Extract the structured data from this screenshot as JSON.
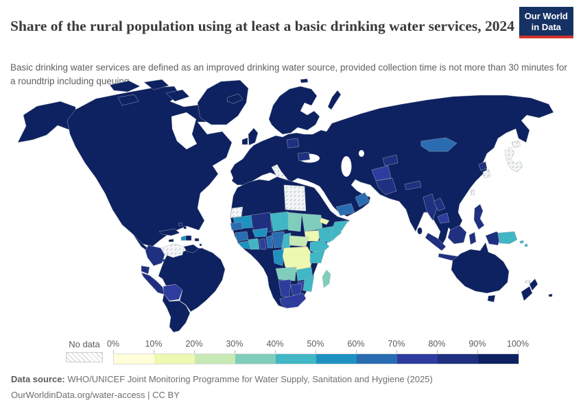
{
  "header": {
    "title": "Share of the rural population using at least a basic drinking water services, 2024",
    "subtitle": "Basic drinking water services are defined as an improved drinking water source, provided collection time is not more than 30 minutes for a roundtrip including queuing."
  },
  "logo": {
    "line1": "Our World",
    "line2": "in Data",
    "bg_color": "#163264",
    "accent_color": "#d0342c"
  },
  "legend": {
    "no_data_label": "No data",
    "tick_labels": [
      "0%",
      "10%",
      "20%",
      "30%",
      "40%",
      "50%",
      "60%",
      "70%",
      "80%",
      "90%",
      "100%"
    ]
  },
  "footer": {
    "source_label": "Data source:",
    "source_text": "WHO/UNICEF Joint Monitoring Programme for Water Supply, Sanitation and Hygiene (2025)",
    "link_line": "OurWorldinData.org/water-access | CC BY"
  },
  "chart_data": {
    "type": "choropleth",
    "title": "Share of the rural population using at least a basic drinking water services",
    "year": "2024",
    "unit": "% of rural population using at least basic drinking water services",
    "legend_position": "bottom",
    "bin_labels": [
      "0-10%",
      "10-20%",
      "20-30%",
      "30-40%",
      "40-50%",
      "50-60%",
      "60-70%",
      "70-80%",
      "80-90%",
      "90-100%"
    ],
    "bin_colors": [
      "#ffffd9",
      "#edf8b1",
      "#c7e9b4",
      "#7fcdbb",
      "#41b6c4",
      "#1d91c0",
      "#2a6cb2",
      "#2e3c9e",
      "#203080",
      "#0e2261"
    ],
    "no_data_color_pattern": "gray-diagonal-hatch",
    "default_bin": 9,
    "region_bins": {
      "united-states": 9,
      "canada-united-states": 9,
      "canada-arctic-islands": 9,
      "greenland": 9,
      "mexico": 9,
      "central-america": 9,
      "nicaragua": "no_data",
      "cuba": 9,
      "jamaica": 9,
      "haiti": 5,
      "dominican-republic": 9,
      "puerto-rico": 9,
      "bahamas": 9,
      "lesser-antilles": 9,
      "trinidad-and-tobago": 9,
      "venezuela": "no_data",
      "colombia": 8,
      "ecuador": 8,
      "peru": 8,
      "bolivia": 7,
      "brazil": 9,
      "guyana-suriname": 9,
      "argentina-chile": 9,
      "iceland": 9,
      "united-kingdom": 9,
      "ireland": 9,
      "scandinavia": 9,
      "svalbard": 9,
      "novaya-zemlya": 9,
      "eurasia": 9,
      "poland": 8,
      "romania": 8,
      "italy": "no_data",
      "africa-north": 9,
      "western-sahara": "no_data",
      "libya": "no_data",
      "mauritania": 5,
      "mali": 8,
      "niger": 4,
      "chad": 3,
      "sudan": 3,
      "eritrea": 1,
      "south-sudan": 1,
      "ethiopia": 4,
      "somalia": 4,
      "senegal": 6,
      "guinea": 6,
      "sierra-leone-liberia": 5,
      "cote-divoire": 4,
      "ghana": 7,
      "togo-benin": 6,
      "burkina-faso": 5,
      "nigeria": 6,
      "cameroon": 4,
      "central-african-republic": 2,
      "congo-gabon": 5,
      "democratic-republic-of-congo": 1,
      "kenya-uganda": 4,
      "tanzania": 4,
      "angola": 3,
      "zambia": 4,
      "zimbabwe": 7,
      "mozambique": 4,
      "namibia": 7,
      "botswana": 7,
      "south-africa": 7,
      "madagascar": 3,
      "mongolia": 6,
      "tajikistan-kyrgyzstan": 8,
      "afghanistan": 7,
      "pakistan": 8,
      "nepal": 8,
      "myanmar": 8,
      "laos": 8,
      "cambodia": 7,
      "north-korea": 8,
      "south-korea": "no_data",
      "japan": "no_data",
      "taiwan": "no_data",
      "yemen": 6,
      "oman": 6,
      "sri-lanka": 9,
      "indonesia": 8,
      "philippines": 8,
      "papua-new-guinea": 4,
      "solomon-islands": 4,
      "new-caledonia": "no_data",
      "fiji": 9,
      "australia": 9,
      "new-zealand": 9
    }
  }
}
